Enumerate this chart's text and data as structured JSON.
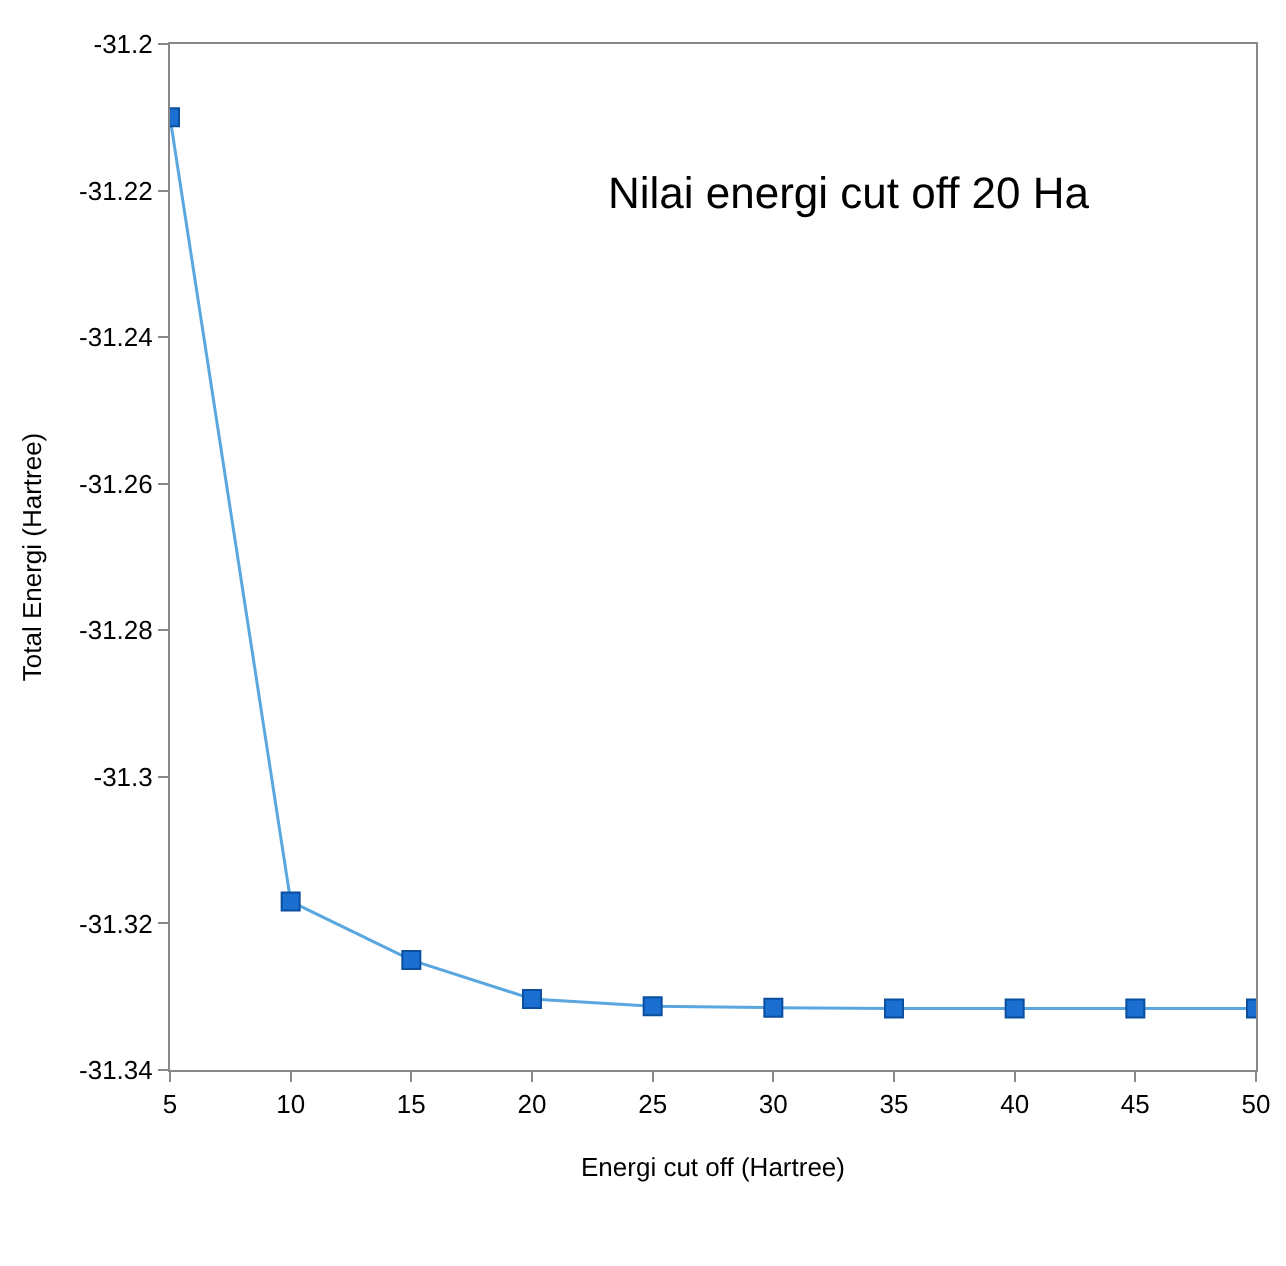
{
  "chart_data": {
    "type": "line",
    "xlabel": "Energi cut off (Hartree)",
    "ylabel": "Total Energi (Hartree)",
    "x": [
      5,
      10,
      15,
      20,
      25,
      30,
      35,
      40,
      45,
      50
    ],
    "series": [
      {
        "color": "#1a6fd0",
        "values": [
          -31.21,
          -31.317,
          -31.325,
          -31.3303,
          -31.3313,
          -31.3315,
          -31.3316,
          -31.3316,
          -31.3316,
          -31.3316
        ]
      }
    ],
    "xlim": [
      5,
      50
    ],
    "xticks": [
      5,
      10,
      15,
      20,
      25,
      30,
      35,
      40,
      45,
      50
    ],
    "ylim": [
      -31.34,
      -31.2
    ],
    "yticks": [
      -31.34,
      -31.32,
      -31.3,
      -31.28,
      -31.26,
      -31.24,
      -31.22,
      -31.2
    ],
    "annotations": [
      "Nilai energi cut off 20 Ha"
    ],
    "grid": false,
    "marker": "square",
    "line_style": "solid"
  }
}
